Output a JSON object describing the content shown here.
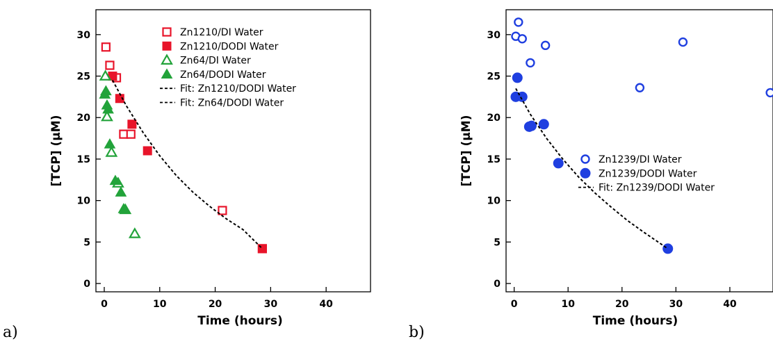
{
  "panels": [
    {
      "letter": "a)"
    },
    {
      "letter": "b)"
    }
  ],
  "chart_data": [
    {
      "type": "scatter",
      "title": "",
      "xlabel": "Time (hours)",
      "ylabel": "[TCP] (µM)",
      "xlim": [
        -1.5,
        48
      ],
      "ylim": [
        -1,
        33
      ],
      "xticks": [
        0,
        10,
        20,
        30,
        40
      ],
      "yticks": [
        0,
        5,
        10,
        15,
        20,
        25,
        30
      ],
      "legend_position": "top-right",
      "series": [
        {
          "name": "Zn1210/DI Water",
          "marker": "square-open",
          "color": "#e8142a",
          "x": [
            0.3,
            1.0,
            2.2,
            3.5,
            4.8,
            21.3,
            28.5
          ],
          "y": [
            28.5,
            26.3,
            24.8,
            18.0,
            18.0,
            8.8,
            4.2
          ]
        },
        {
          "name": "Zn1210/DODI Water",
          "marker": "square-filled",
          "color": "#e8142a",
          "x": [
            1.5,
            2.8,
            5.0,
            7.8,
            28.5
          ],
          "y": [
            25.0,
            22.3,
            19.2,
            16.0,
            4.2
          ]
        },
        {
          "name": "Zn64/DI Water",
          "marker": "triangle-open",
          "color": "#22a33a",
          "x": [
            0.2,
            0.5,
            1.3,
            2.5,
            3.8,
            5.5
          ],
          "y": [
            25.0,
            20.1,
            15.8,
            12.1,
            8.9,
            6.0
          ]
        },
        {
          "name": "Zn64/DODI Water",
          "marker": "triangle-filled",
          "color": "#22a33a",
          "x": [
            0.1,
            0.3,
            0.5,
            0.7,
            1.0,
            2.0,
            3.0,
            3.5
          ],
          "y": [
            22.8,
            23.2,
            21.5,
            21.0,
            16.8,
            12.4,
            11.0,
            9.0
          ]
        },
        {
          "name": "Fit: Zn1210/DODI Water",
          "marker": "dashed-line",
          "color": "#000000",
          "x": [
            1.5,
            4,
            7,
            10,
            13,
            16,
            19,
            22,
            25,
            28.5
          ],
          "y": [
            24.5,
            21.4,
            18.2,
            15.4,
            13.0,
            11.0,
            9.3,
            7.8,
            6.5,
            4.2
          ]
        },
        {
          "name": "Fit: Zn64/DODI Water",
          "marker": "dashed-line",
          "color": "#000000",
          "x": [],
          "y": []
        }
      ]
    },
    {
      "type": "scatter",
      "title": "",
      "xlabel": "Time (hours)",
      "ylabel": "[TCP] (µM)",
      "xlim": [
        -1.5,
        48
      ],
      "ylim": [
        -1,
        33
      ],
      "xticks": [
        0,
        10,
        20,
        30,
        40
      ],
      "yticks": [
        0,
        5,
        10,
        15,
        20,
        25,
        30
      ],
      "legend_position": "right",
      "series": [
        {
          "name": "Zn1239/DI Water",
          "marker": "circle-open",
          "color": "#1f3fe0",
          "x": [
            0.3,
            0.8,
            1.5,
            3.0,
            5.8,
            23.3,
            31.3,
            47.5
          ],
          "y": [
            29.8,
            31.5,
            29.5,
            26.6,
            28.7,
            23.6,
            29.1,
            23.0
          ]
        },
        {
          "name": "Zn1239/DODI Water",
          "marker": "circle-filled",
          "color": "#1f3fe0",
          "x": [
            0.3,
            0.6,
            1.5,
            2.8,
            3.2,
            5.5,
            8.2,
            28.5
          ],
          "y": [
            22.5,
            24.8,
            22.5,
            18.9,
            19.0,
            19.2,
            14.5,
            4.2
          ]
        },
        {
          "name": "Fit: Zn1239/DODI Water",
          "marker": "dashed-line",
          "color": "#000000",
          "x": [
            0.3,
            3,
            6,
            9,
            12,
            15,
            18,
            21,
            24,
            28.5
          ],
          "y": [
            23.5,
            20.4,
            17.5,
            15.0,
            12.8,
            10.9,
            9.2,
            7.6,
            6.2,
            4.2
          ]
        }
      ]
    }
  ]
}
